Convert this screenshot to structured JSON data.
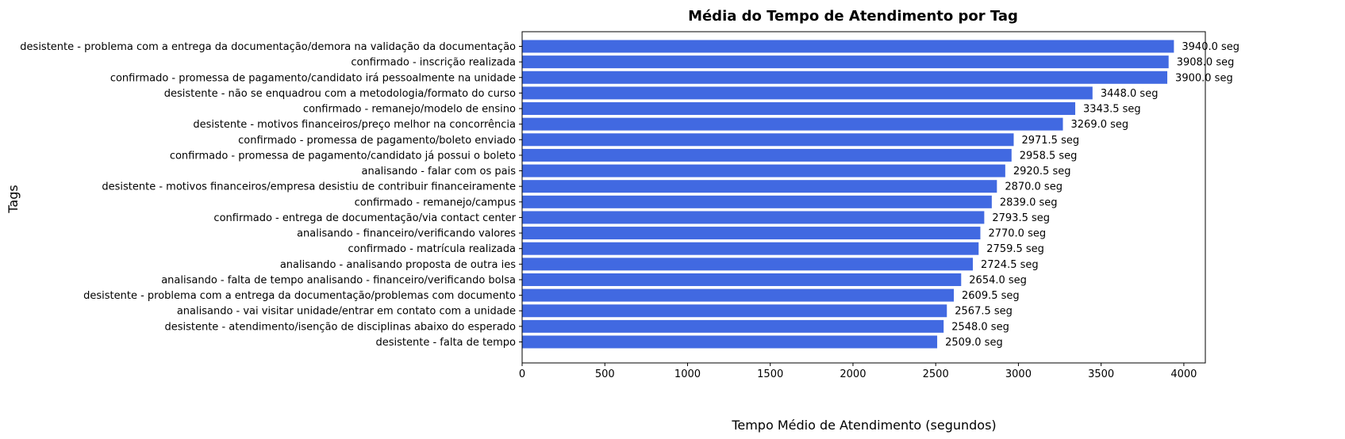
{
  "chart_data": {
    "type": "bar",
    "orientation": "horizontal",
    "title": "Média do Tempo de Atendimento por Tag",
    "xlabel": "Tempo Médio de Atendimento (segundos)",
    "ylabel": "Tags",
    "xlim": [
      0,
      4130
    ],
    "xticks": [
      0,
      500,
      1000,
      1500,
      2000,
      2500,
      3000,
      3500,
      4000
    ],
    "grid": false,
    "bar_color": "#4169e1",
    "value_suffix": " seg",
    "categories": [
      "desistente - problema com a entrega da documentação/demora na validação da documentação",
      "confirmado - inscrição realizada",
      "confirmado - promessa de pagamento/candidato irá pessoalmente na unidade",
      "desistente - não se enquadrou com a metodologia/formato do curso",
      "confirmado - remanejo/modelo de ensino",
      "desistente - motivos financeiros/preço melhor na concorrência",
      "confirmado - promessa de pagamento/boleto enviado",
      "confirmado - promessa de pagamento/candidato já possui o boleto",
      "analisando - falar com os pais",
      "desistente - motivos financeiros/empresa desistiu de contribuir financeiramente",
      "confirmado - remanejo/campus",
      "confirmado - entrega de documentação/via contact center",
      "analisando - financeiro/verificando valores",
      "confirmado - matrícula realizada",
      "analisando - analisando proposta de outra ies",
      "analisando - falta de tempo analisando - financeiro/verificando bolsa",
      "desistente - problema com a entrega da documentação/problemas com documento",
      "analisando - vai visitar unidade/entrar em contato com a unidade",
      "desistente - atendimento/isenção de disciplinas abaixo do esperado",
      "desistente - falta de tempo"
    ],
    "values": [
      3940.0,
      3908.0,
      3900.0,
      3448.0,
      3343.5,
      3269.0,
      2971.5,
      2958.5,
      2920.5,
      2870.0,
      2839.0,
      2793.5,
      2770.0,
      2759.5,
      2724.5,
      2654.0,
      2609.5,
      2567.5,
      2548.0,
      2509.0
    ],
    "data_labels": [
      "3940.0 seg",
      "3908.0 seg",
      "3900.0 seg",
      "3448.0 seg",
      "3343.5 seg",
      "3269.0 seg",
      "2971.5 seg",
      "2958.5 seg",
      "2920.5 seg",
      "2870.0 seg",
      "2839.0 seg",
      "2793.5 seg",
      "2770.0 seg",
      "2759.5 seg",
      "2724.5 seg",
      "2654.0 seg",
      "2609.5 seg",
      "2567.5 seg",
      "2548.0 seg",
      "2509.0 seg"
    ]
  }
}
